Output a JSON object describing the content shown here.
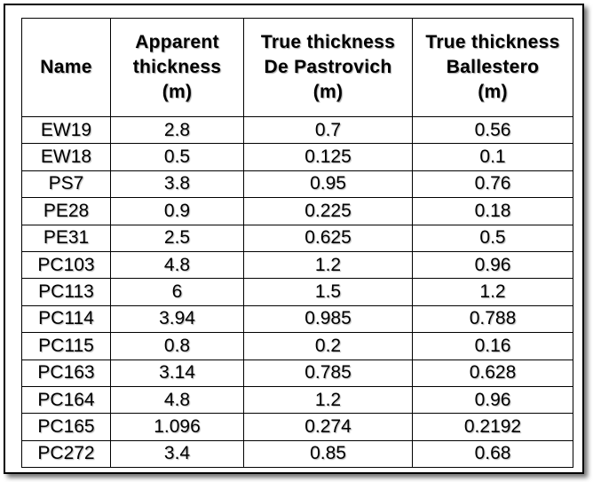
{
  "table": {
    "headers": [
      [
        "Name"
      ],
      [
        "Apparent",
        "thickness",
        "(m)"
      ],
      [
        "True thickness",
        "De Pastrovich",
        "(m)"
      ],
      [
        "True thickness",
        "Ballestero",
        "(m)"
      ]
    ],
    "rows": [
      [
        "EW19",
        "2.8",
        "0.7",
        "0.56"
      ],
      [
        "EW18",
        "0.5",
        "0.125",
        "0.1"
      ],
      [
        "PS7",
        "3.8",
        "0.95",
        "0.76"
      ],
      [
        "PE28",
        "0.9",
        "0.225",
        "0.18"
      ],
      [
        "PE31",
        "2.5",
        "0.625",
        "0.5"
      ],
      [
        "PC103",
        "4.8",
        "1.2",
        "0.96"
      ],
      [
        "PC113",
        "6",
        "1.5",
        "1.2"
      ],
      [
        "PC114",
        "3.94",
        "0.985",
        "0.788"
      ],
      [
        "PC115",
        "0.8",
        "0.2",
        "0.16"
      ],
      [
        "PC163",
        "3.14",
        "0.785",
        "0.628"
      ],
      [
        "PC164",
        "4.8",
        "1.2",
        "0.96"
      ],
      [
        "PC165",
        "1.096",
        "0.274",
        "0.2192"
      ],
      [
        "PC272",
        "3.4",
        "0.85",
        "0.68"
      ]
    ]
  }
}
